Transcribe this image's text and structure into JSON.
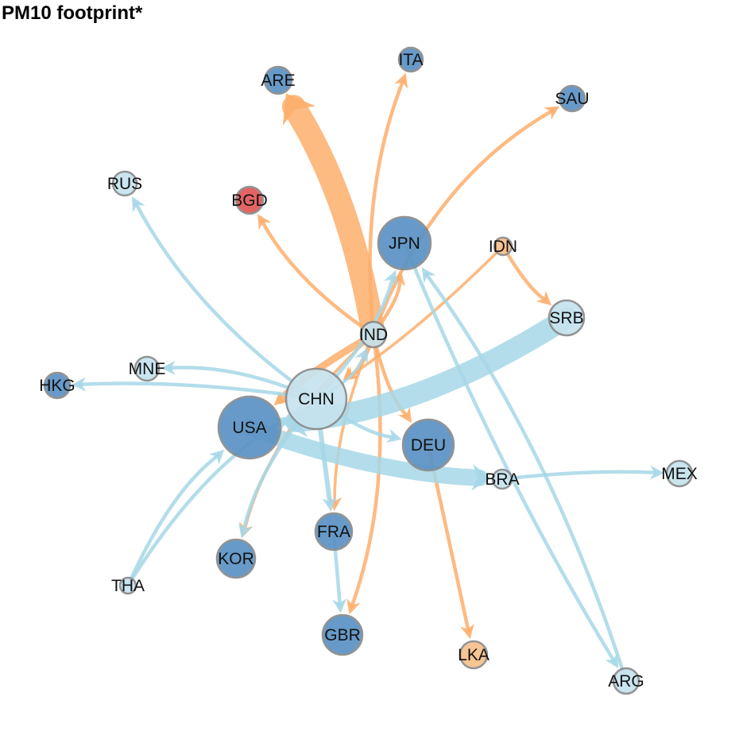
{
  "title": "PM10 footprint*",
  "colors": {
    "orange_edge": "#fdae6b",
    "blue_edge": "#a6d7e8",
    "node_dark": "#5b92c4",
    "node_light": "#c6e3ef",
    "node_red": "#e15759",
    "node_orange": "#f7c08c",
    "node_stroke": "#8a8a8a"
  },
  "nodes": [
    {
      "id": "ARE",
      "label": "ARE",
      "color": "dark"
    },
    {
      "id": "ITA",
      "label": "ITA",
      "color": "dark"
    },
    {
      "id": "SAU",
      "label": "SAU",
      "color": "dark"
    },
    {
      "id": "RUS",
      "label": "RUS",
      "color": "light"
    },
    {
      "id": "BGD",
      "label": "BGD",
      "color": "red"
    },
    {
      "id": "JPN",
      "label": "JPN",
      "color": "dark"
    },
    {
      "id": "IDN",
      "label": "IDN",
      "color": "orange"
    },
    {
      "id": "SRB",
      "label": "SRB",
      "color": "light"
    },
    {
      "id": "IND",
      "label": "IND",
      "color": "light"
    },
    {
      "id": "MNE",
      "label": "MNE",
      "color": "light"
    },
    {
      "id": "HKG",
      "label": "HKG",
      "color": "dark"
    },
    {
      "id": "CHN",
      "label": "CHN",
      "color": "light"
    },
    {
      "id": "USA",
      "label": "USA",
      "color": "dark"
    },
    {
      "id": "DEU",
      "label": "DEU",
      "color": "dark"
    },
    {
      "id": "BRA",
      "label": "BRA",
      "color": "light"
    },
    {
      "id": "MEX",
      "label": "MEX",
      "color": "light"
    },
    {
      "id": "FRA",
      "label": "FRA",
      "color": "dark"
    },
    {
      "id": "KOR",
      "label": "KOR",
      "color": "dark"
    },
    {
      "id": "THA",
      "label": "THA",
      "color": "light"
    },
    {
      "id": "GBR",
      "label": "GBR",
      "color": "dark"
    },
    {
      "id": "LKA",
      "label": "LKA",
      "color": "orange"
    },
    {
      "id": "ARG",
      "label": "ARG",
      "color": "light"
    }
  ],
  "edges": [
    {
      "from": "IND",
      "to": "ARE",
      "color": "orange",
      "weight": 10
    },
    {
      "from": "IND",
      "to": "ITA",
      "color": "orange",
      "weight": 1.5
    },
    {
      "from": "IND",
      "to": "SAU",
      "color": "orange",
      "weight": 1.5
    },
    {
      "from": "IND",
      "to": "BGD",
      "color": "orange",
      "weight": 1.5
    },
    {
      "from": "IND",
      "to": "JPN",
      "color": "orange",
      "weight": 1.5
    },
    {
      "from": "IND",
      "to": "DEU",
      "color": "orange",
      "weight": 1.5
    },
    {
      "from": "IND",
      "to": "GBR",
      "color": "orange",
      "weight": 1.5
    },
    {
      "from": "IND",
      "to": "FRA",
      "color": "orange",
      "weight": 1.2
    },
    {
      "from": "IND",
      "to": "KOR",
      "color": "orange",
      "weight": 1.2
    },
    {
      "from": "IND",
      "to": "USA",
      "color": "orange",
      "weight": 3
    },
    {
      "from": "IND",
      "to": "CHN",
      "color": "orange",
      "weight": 2
    },
    {
      "from": "IDN",
      "to": "SRB",
      "color": "orange",
      "weight": 1.5
    },
    {
      "from": "IDN",
      "to": "CHN",
      "color": "orange",
      "weight": 1.2
    },
    {
      "from": "DEU",
      "to": "LKA",
      "color": "orange",
      "weight": 1.5
    },
    {
      "from": "SRB",
      "to": "USA",
      "color": "blue",
      "weight": 9
    },
    {
      "from": "CHN",
      "to": "RUS",
      "color": "blue",
      "weight": 1.5
    },
    {
      "from": "CHN",
      "to": "MNE",
      "color": "blue",
      "weight": 1.5
    },
    {
      "from": "CHN",
      "to": "HKG",
      "color": "blue",
      "weight": 1.5
    },
    {
      "from": "CHN",
      "to": "JPN",
      "color": "blue",
      "weight": 1.5
    },
    {
      "from": "CHN",
      "to": "IND",
      "color": "blue",
      "weight": 1.2
    },
    {
      "from": "CHN",
      "to": "DEU",
      "color": "blue",
      "weight": 1.5
    },
    {
      "from": "CHN",
      "to": "FRA",
      "color": "blue",
      "weight": 2
    },
    {
      "from": "CHN",
      "to": "KOR",
      "color": "blue",
      "weight": 1.5
    },
    {
      "from": "USA",
      "to": "BRA",
      "color": "blue",
      "weight": 7
    },
    {
      "from": "BRA",
      "to": "MEX",
      "color": "blue",
      "weight": 1.5
    },
    {
      "from": "FRA",
      "to": "GBR",
      "color": "blue",
      "weight": 1.5
    },
    {
      "from": "THA",
      "to": "USA",
      "color": "blue",
      "weight": 1.5
    },
    {
      "from": "THA",
      "to": "CHN",
      "color": "blue",
      "weight": 1.5
    },
    {
      "from": "ARG",
      "to": "JPN",
      "color": "blue",
      "weight": 1.5
    },
    {
      "from": "JPN",
      "to": "ARG",
      "color": "blue",
      "weight": 1.5
    }
  ]
}
